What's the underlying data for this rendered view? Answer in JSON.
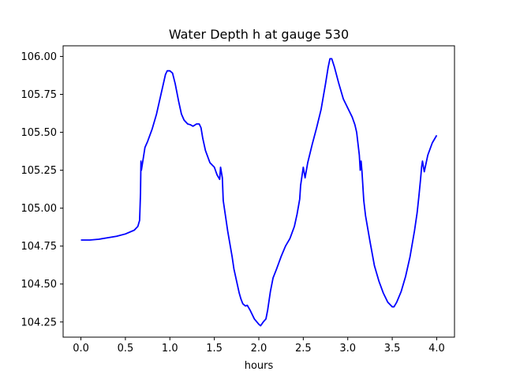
{
  "chart_data": {
    "type": "line",
    "title": "Water Depth h at gauge 530",
    "xlabel": "hours",
    "ylabel": "",
    "xlim": [
      -0.2,
      4.2
    ],
    "ylim": [
      104.15,
      106.07
    ],
    "xticks": [
      0.0,
      0.5,
      1.0,
      1.5,
      2.0,
      2.5,
      3.0,
      3.5,
      4.0
    ],
    "xtick_labels": [
      "0.0",
      "0.5",
      "1.0",
      "1.5",
      "2.0",
      "2.5",
      "3.0",
      "3.5",
      "4.0"
    ],
    "yticks": [
      104.25,
      104.5,
      104.75,
      105.0,
      105.25,
      105.5,
      105.75,
      106.0
    ],
    "ytick_labels": [
      "104.25",
      "104.50",
      "104.75",
      "105.00",
      "105.25",
      "105.50",
      "105.75",
      "106.00"
    ],
    "grid": false,
    "series": [
      {
        "color": "#0000ff",
        "x": [
          0.0,
          0.1,
          0.2,
          0.3,
          0.4,
          0.5,
          0.6,
          0.64,
          0.66,
          0.67,
          0.675,
          0.68,
          0.72,
          0.75,
          0.8,
          0.85,
          0.9,
          0.95,
          0.97,
          1.0,
          1.03,
          1.06,
          1.1,
          1.13,
          1.16,
          1.2,
          1.23,
          1.26,
          1.3,
          1.33,
          1.35,
          1.37,
          1.4,
          1.45,
          1.5,
          1.53,
          1.56,
          1.57,
          1.59,
          1.6,
          1.65,
          1.7,
          1.72,
          1.75,
          1.78,
          1.8,
          1.82,
          1.85,
          1.87,
          1.9,
          1.95,
          2.0,
          2.02,
          2.05,
          2.08,
          2.1,
          2.13,
          2.16,
          2.2,
          2.25,
          2.3,
          2.35,
          2.4,
          2.43,
          2.46,
          2.47,
          2.5,
          2.52,
          2.55,
          2.6,
          2.65,
          2.7,
          2.75,
          2.78,
          2.8,
          2.82,
          2.85,
          2.9,
          2.95,
          3.0,
          3.05,
          3.08,
          3.1,
          3.13,
          3.14,
          3.15,
          3.16,
          3.18,
          3.2,
          3.25,
          3.3,
          3.35,
          3.4,
          3.45,
          3.5,
          3.52,
          3.55,
          3.6,
          3.65,
          3.7,
          3.75,
          3.78,
          3.8,
          3.82,
          3.83,
          3.84,
          3.86,
          3.9,
          3.95,
          4.0
        ],
        "y": [
          104.79,
          104.79,
          104.795,
          104.805,
          104.815,
          104.83,
          104.855,
          104.88,
          104.92,
          105.1,
          105.31,
          105.25,
          105.4,
          105.44,
          105.52,
          105.62,
          105.75,
          105.88,
          105.905,
          105.905,
          105.89,
          105.82,
          105.7,
          105.62,
          105.58,
          105.555,
          105.55,
          105.54,
          105.555,
          105.555,
          105.53,
          105.46,
          105.38,
          105.3,
          105.27,
          105.22,
          105.19,
          105.27,
          105.2,
          105.05,
          104.85,
          104.68,
          104.6,
          104.52,
          104.44,
          104.4,
          104.37,
          104.355,
          104.36,
          104.33,
          104.27,
          104.235,
          104.225,
          104.25,
          104.27,
          104.33,
          104.45,
          104.54,
          104.6,
          104.68,
          104.75,
          104.8,
          104.88,
          104.96,
          105.06,
          105.15,
          105.27,
          105.2,
          105.3,
          105.42,
          105.53,
          105.65,
          105.82,
          105.93,
          105.985,
          105.985,
          105.93,
          105.82,
          105.72,
          105.66,
          105.6,
          105.55,
          105.5,
          105.35,
          105.25,
          105.31,
          105.24,
          105.05,
          104.95,
          104.78,
          104.62,
          104.52,
          104.44,
          104.38,
          104.35,
          104.35,
          104.38,
          104.45,
          104.55,
          104.68,
          104.85,
          104.97,
          105.08,
          105.2,
          105.27,
          105.31,
          105.24,
          105.35,
          105.43,
          105.48
        ]
      }
    ]
  }
}
